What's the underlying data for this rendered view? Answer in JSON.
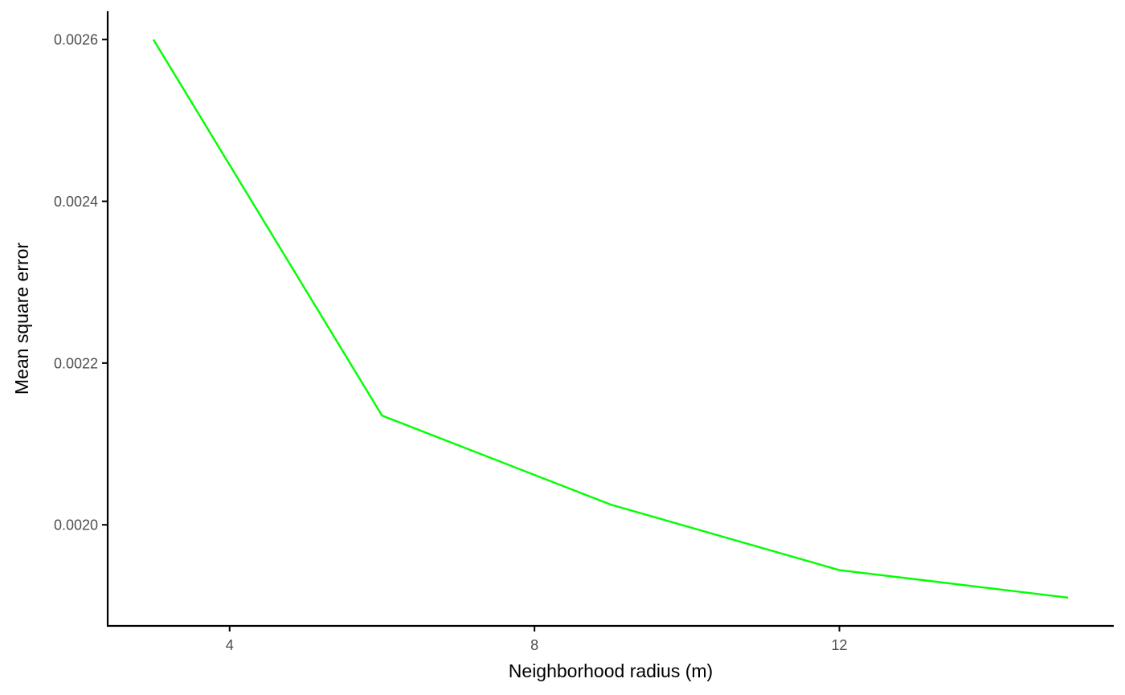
{
  "chart_data": {
    "type": "line",
    "title": "",
    "xlabel": "Neighborhood radius (m)",
    "ylabel": "Mean square error",
    "x_ticks": [
      {
        "value": 4,
        "label": "4"
      },
      {
        "value": 8,
        "label": "8"
      },
      {
        "value": 12,
        "label": "12"
      }
    ],
    "y_ticks": [
      {
        "value": 0.002,
        "label": "0.0020"
      },
      {
        "value": 0.0022,
        "label": "0.0022"
      },
      {
        "value": 0.0024,
        "label": "0.0024"
      },
      {
        "value": 0.0026,
        "label": "0.0026"
      }
    ],
    "xlim": [
      2.4,
      15.6
    ],
    "ylim": [
      0.001875,
      0.002635
    ],
    "grid": false,
    "legend": "none",
    "series": [
      {
        "color": "#00ff00",
        "x": [
          3,
          6,
          9,
          12,
          15
        ],
        "y": [
          0.0026,
          0.002135,
          0.002025,
          0.001944,
          0.00191
        ]
      }
    ]
  }
}
